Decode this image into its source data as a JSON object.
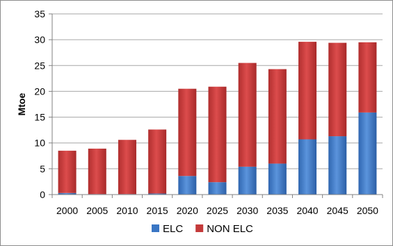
{
  "chart_data": {
    "type": "bar",
    "stacked": true,
    "categories": [
      "2000",
      "2005",
      "2010",
      "2015",
      "2020",
      "2025",
      "2030",
      "2035",
      "2040",
      "2045",
      "2050"
    ],
    "series": [
      {
        "name": "ELC",
        "color": "#3a76c4",
        "values": [
          0.3,
          0.1,
          0.1,
          0.2,
          3.6,
          2.4,
          5.4,
          6.0,
          10.7,
          11.3,
          15.9
        ]
      },
      {
        "name": "NON ELC",
        "color": "#c43a3a",
        "values": [
          8.2,
          8.8,
          10.5,
          12.4,
          16.9,
          18.5,
          20.1,
          18.3,
          18.9,
          18.1,
          13.6
        ]
      }
    ],
    "ylabel": "Mtoe",
    "ylim": [
      0,
      35
    ],
    "yticks": [
      0,
      5,
      10,
      15,
      20,
      25,
      30,
      35
    ],
    "grid": true,
    "legend": "bottom"
  }
}
